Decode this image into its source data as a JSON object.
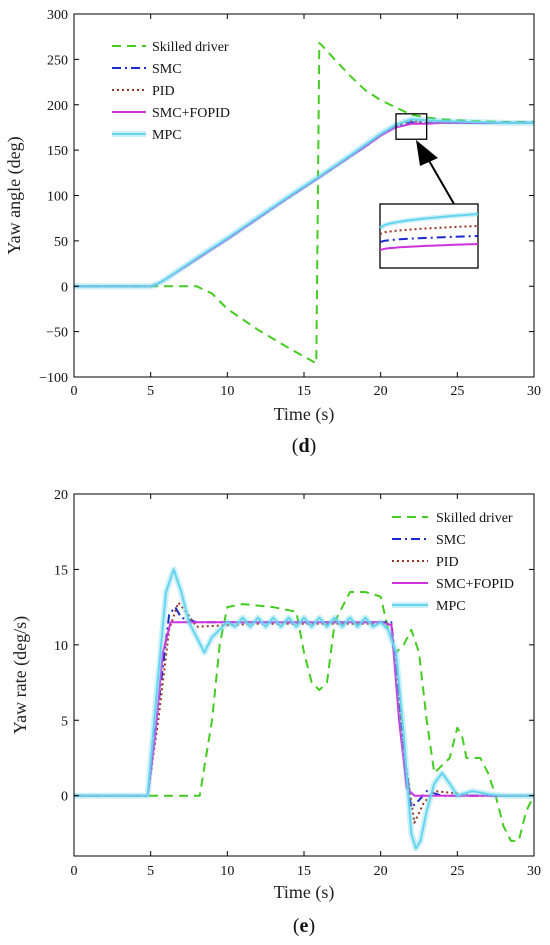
{
  "chart_data": [
    {
      "type": "line",
      "panel_label": "(d)",
      "panel_label_parts": [
        "(",
        "d",
        ")"
      ],
      "xlabel": "Time (s)",
      "ylabel": "Yaw angle (deg)",
      "xlim": [
        0,
        30
      ],
      "ylim": [
        -100,
        300
      ],
      "xticks": [
        0,
        5,
        10,
        15,
        20,
        25,
        30
      ],
      "yticks": [
        -100,
        -50,
        0,
        50,
        100,
        150,
        200,
        250,
        300
      ],
      "ytick_labels": [
        "−100",
        "−50",
        "0",
        "50",
        "100",
        "150",
        "200",
        "250",
        "300"
      ],
      "grid": false,
      "legend_position": "top-left",
      "zoom_box": {
        "x": [
          21,
          23
        ],
        "y": [
          162,
          190
        ]
      },
      "series": [
        {
          "name": "Skilled driver",
          "color": "#44cc22",
          "dash": "dashed",
          "x": [
            0,
            6,
            8,
            9,
            10,
            12,
            14,
            15.8,
            16.0,
            16.2,
            17,
            18,
            19,
            20,
            21,
            22,
            23,
            24,
            26,
            28,
            30
          ],
          "y": [
            0,
            0,
            0,
            -8,
            -25,
            -48,
            -68,
            -85,
            268,
            265,
            250,
            232,
            216,
            205,
            197,
            189,
            186,
            184,
            182,
            181,
            181
          ]
        },
        {
          "name": "SMC",
          "color": "#1a2acc",
          "dash": "dashdot",
          "x": [
            0,
            5,
            5.5,
            6,
            8,
            10,
            12,
            14,
            16,
            18,
            19,
            20,
            21,
            22,
            23,
            24,
            26,
            28,
            30
          ],
          "y": [
            0,
            0,
            3,
            8,
            30,
            52,
            75,
            98,
            120,
            143,
            154,
            166,
            176,
            181,
            180,
            180,
            180,
            180,
            180
          ]
        },
        {
          "name": "PID",
          "color": "#993322",
          "dash": "dotted",
          "x": [
            0,
            5,
            5.5,
            6,
            8,
            10,
            12,
            14,
            16,
            18,
            19,
            20,
            21,
            22,
            23,
            24,
            26,
            28,
            30
          ],
          "y": [
            0,
            0,
            3,
            8,
            30,
            52,
            75,
            98,
            120,
            143,
            154,
            166,
            177,
            182,
            180,
            180,
            180,
            180,
            180
          ]
        },
        {
          "name": "SMC+FOPID",
          "color": "#cc33dd",
          "dash": "solid",
          "x": [
            0,
            5,
            5.5,
            6,
            8,
            10,
            12,
            14,
            16,
            18,
            19,
            20,
            21,
            22,
            23,
            24,
            26,
            28,
            30
          ],
          "y": [
            0,
            0,
            3,
            8,
            30,
            52,
            75,
            98,
            120,
            143,
            154,
            166,
            175,
            179,
            179,
            180,
            180,
            180,
            180
          ]
        },
        {
          "name": "MPC",
          "color": "#66d4ee",
          "dash": "solid",
          "x": [
            0,
            5,
            5.5,
            6,
            8,
            10,
            12,
            14,
            16,
            18,
            19,
            20,
            21,
            22,
            23,
            24,
            26,
            28,
            30
          ],
          "y": [
            0,
            0,
            3,
            8,
            31,
            53,
            76,
            99,
            121,
            144,
            156,
            168,
            178,
            184,
            183,
            182,
            181,
            180,
            180
          ]
        }
      ]
    },
    {
      "type": "line",
      "panel_label": "(e)",
      "panel_label_parts": [
        "(",
        "e",
        ")"
      ],
      "xlabel": "Time (s)",
      "ylabel": "Yaw rate (deg/s)",
      "xlim": [
        0,
        30
      ],
      "ylim": [
        -4,
        20
      ],
      "xticks": [
        0,
        5,
        10,
        15,
        20,
        25,
        30
      ],
      "yticks": [
        0,
        5,
        10,
        15,
        20
      ],
      "ytick_labels": [
        "0",
        "5",
        "10",
        "15",
        "20"
      ],
      "grid": false,
      "legend_position": "top-right",
      "series": [
        {
          "name": "Skilled driver",
          "color": "#44cc22",
          "dash": "dashed",
          "x": [
            0,
            7.8,
            8.2,
            9,
            9.5,
            10,
            11,
            13,
            14.5,
            15,
            15.5,
            16,
            16.5,
            17,
            17.5,
            18,
            19,
            20,
            20.5,
            21,
            21.5,
            22,
            22.5,
            23,
            23.5,
            24,
            24.5,
            25,
            25.3,
            25.6,
            26,
            26.5,
            27,
            27.5,
            28,
            28.5,
            29,
            29.5,
            30
          ],
          "y": [
            0,
            0,
            0,
            5,
            10,
            12.5,
            12.7,
            12.5,
            12.2,
            9.5,
            7.5,
            7.0,
            7.5,
            11.5,
            12.5,
            13.5,
            13.5,
            13.2,
            11.0,
            9.5,
            10.0,
            11.0,
            9.5,
            5.0,
            1.5,
            2.0,
            2.5,
            4.5,
            4.0,
            2.5,
            2.5,
            2.5,
            1.5,
            0.0,
            -2.0,
            -3.0,
            -3.0,
            -1.0,
            0.0
          ]
        },
        {
          "name": "SMC",
          "color": "#1a2acc",
          "dash": "dashdot",
          "x": [
            0,
            4.8,
            5.5,
            6.2,
            6.6,
            7,
            8,
            10,
            12,
            14,
            16,
            18,
            20,
            20.7,
            21.5,
            22,
            22.5,
            23,
            24,
            30
          ],
          "y": [
            0,
            0,
            6,
            12,
            12.5,
            11.8,
            11.5,
            11.5,
            11.5,
            11.5,
            11.5,
            11.5,
            11.5,
            11.5,
            3,
            -0.8,
            -0.3,
            0.3,
            0,
            0
          ]
        },
        {
          "name": "PID",
          "color": "#993322",
          "dash": "dotted",
          "x": [
            0,
            4.8,
            5.5,
            6.2,
            6.8,
            7.3,
            8,
            10,
            12,
            14,
            16,
            18,
            20,
            20.7,
            21.5,
            22.2,
            22.8,
            23.5,
            24.5,
            26,
            30
          ],
          "y": [
            0,
            0,
            5,
            11,
            12.8,
            12.2,
            11.2,
            11.3,
            11.4,
            11.4,
            11.4,
            11.4,
            11.4,
            11.4,
            3,
            -1.8,
            -0.5,
            0.3,
            0.2,
            0,
            0
          ]
        },
        {
          "name": "SMC+FOPID",
          "color": "#cc33dd",
          "dash": "solid",
          "x": [
            0,
            4.8,
            5.3,
            5.8,
            6.3,
            7,
            8,
            10,
            12,
            14,
            16,
            18,
            20,
            20.7,
            21.2,
            21.7,
            22.2,
            23,
            30
          ],
          "y": [
            0,
            0,
            4,
            9.5,
            11.5,
            11.5,
            11.5,
            11.5,
            11.5,
            11.5,
            11.5,
            11.5,
            11.5,
            11.3,
            5,
            0.5,
            0,
            0,
            0
          ]
        },
        {
          "name": "MPC",
          "color": "#66d4ee",
          "dash": "solid",
          "x": [
            0,
            4.8,
            5.5,
            6.0,
            6.5,
            7,
            7.5,
            8,
            8.5,
            9,
            10,
            10.5,
            11,
            11.5,
            12,
            12.5,
            13,
            13.5,
            14,
            14.5,
            15,
            15.5,
            16,
            16.5,
            17,
            17.5,
            18,
            18.5,
            19,
            19.5,
            20,
            20.5,
            21,
            21.5,
            22,
            22.3,
            22.6,
            23,
            23.5,
            24,
            24.5,
            25,
            26,
            27,
            28,
            30
          ],
          "y": [
            0,
            0,
            8,
            13.5,
            15,
            13.5,
            11.5,
            10.5,
            9.5,
            10.5,
            11.5,
            11.2,
            11.8,
            11.2,
            11.8,
            11.2,
            11.8,
            11.2,
            11.8,
            11.2,
            11.8,
            11.2,
            11.8,
            11.2,
            11.8,
            11.2,
            11.8,
            11.2,
            11.8,
            11.2,
            11.5,
            11.0,
            9.5,
            4.0,
            -2.5,
            -3.5,
            -3.0,
            -1.0,
            0.8,
            1.5,
            0.8,
            0,
            0.3,
            0.1,
            0,
            0
          ]
        }
      ]
    }
  ]
}
